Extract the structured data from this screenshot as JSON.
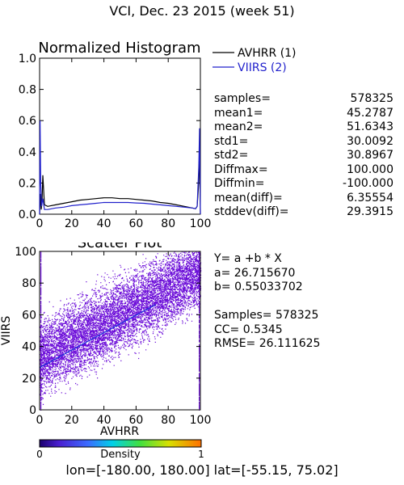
{
  "page_title": "VCI,  Dec. 23 2015 (week 51)",
  "chart_data": [
    {
      "type": "line",
      "title": "Normalized Histogram",
      "xlabel": "",
      "ylabel": "",
      "xlim": [
        0,
        100
      ],
      "ylim": [
        0,
        1.0
      ],
      "x_ticks": [
        "0",
        "20",
        "40",
        "60",
        "80",
        "100"
      ],
      "y_ticks": [
        "0.0",
        "0.2",
        "0.4",
        "0.6",
        "0.8",
        "1.0"
      ],
      "legend": "top-right",
      "series": [
        {
          "name": "AVHRR (1)",
          "color": "#000000",
          "x": [
            0,
            0.5,
            1,
            1.5,
            2,
            3,
            5,
            10,
            15,
            20,
            25,
            30,
            35,
            40,
            45,
            50,
            55,
            60,
            65,
            70,
            75,
            80,
            85,
            90,
            95,
            97,
            98,
            99,
            99.5,
            100
          ],
          "y": [
            0.0,
            0.13,
            0.03,
            0.08,
            0.25,
            0.06,
            0.05,
            0.06,
            0.07,
            0.08,
            0.09,
            0.095,
            0.1,
            0.105,
            0.105,
            0.1,
            0.1,
            0.095,
            0.09,
            0.085,
            0.075,
            0.07,
            0.06,
            0.05,
            0.04,
            0.035,
            0.05,
            0.2,
            0.45,
            0.0
          ]
        },
        {
          "name": "VIIRS (2)",
          "color": "#2222cc",
          "x": [
            0,
            0.3,
            0.7,
            1.2,
            2,
            3,
            5,
            10,
            15,
            20,
            25,
            30,
            35,
            40,
            45,
            50,
            55,
            60,
            65,
            70,
            75,
            80,
            85,
            90,
            95,
            97,
            98,
            99,
            99.5,
            100
          ],
          "y": [
            0.0,
            0.6,
            0.2,
            0.05,
            0.1,
            0.03,
            0.03,
            0.04,
            0.045,
            0.055,
            0.06,
            0.065,
            0.07,
            0.075,
            0.075,
            0.075,
            0.075,
            0.072,
            0.07,
            0.065,
            0.06,
            0.055,
            0.05,
            0.045,
            0.04,
            0.035,
            0.05,
            0.3,
            0.55,
            0.0
          ]
        }
      ]
    },
    {
      "type": "scatter",
      "title": "Scatter Plot",
      "xlabel": "AVHRR",
      "ylabel": "VIIRS",
      "xlim": [
        0,
        100
      ],
      "ylim": [
        0,
        100
      ],
      "x_ticks": [
        "0",
        "20",
        "40",
        "60",
        "80",
        "100"
      ],
      "y_ticks": [
        "0",
        "20",
        "40",
        "60",
        "80",
        "100"
      ],
      "point_color": "#6a0ad8",
      "fit_color": "#2233dd",
      "regression": {
        "a": 26.71567,
        "b": 0.55033702
      },
      "density_colorbar": {
        "label": "Density",
        "min_label": "0",
        "max_label": "1"
      }
    }
  ],
  "hist_stats": [
    {
      "label": "samples=",
      "value": "578325"
    },
    {
      "label": "mean1=",
      "value": "45.2787"
    },
    {
      "label": "mean2=",
      "value": "51.6343"
    },
    {
      "label": "std1=",
      "value": "30.0092"
    },
    {
      "label": "std2=",
      "value": "30.8967"
    },
    {
      "label": "Diffmax=",
      "value": "100.000"
    },
    {
      "label": "Diffmin=",
      "value": "-100.000"
    },
    {
      "label": "mean(diff)=",
      "value": "6.35554"
    },
    {
      "label": "stddev(diff)=",
      "value": "29.3915"
    }
  ],
  "regression_text": [
    "Y= a +b * X",
    "a= 26.715670",
    "b= 0.55033702",
    "",
    "Samples= 578325",
    "CC=  0.5345",
    "RMSE= 26.111625"
  ],
  "footer": "lon=[-180.00, 180.00] lat=[-55.15, 75.02]"
}
